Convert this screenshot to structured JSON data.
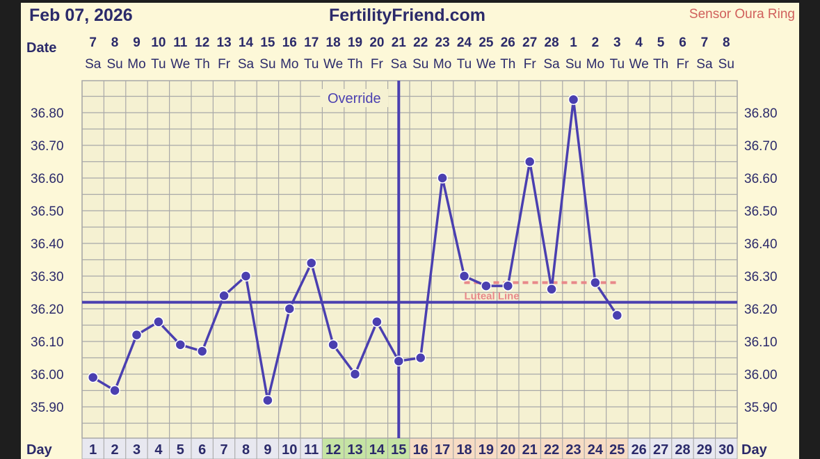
{
  "header": {
    "date": "Feb 07, 2026",
    "site": "FertilityFriend.com",
    "sensor": "Sensor Oura Ring"
  },
  "labels": {
    "date_row": "Date",
    "day_row": "Day",
    "override": "Override",
    "luteal": "Luteal Line"
  },
  "colors": {
    "line": "#4a3fb0",
    "grid": "#a8a8a8",
    "text": "#2b2a6a",
    "luteal": "#e8888a",
    "fertile_cell": "#c6e4a4",
    "luteal_cell": "#f7dcc4",
    "default_cell": "#e8e8f0",
    "background": "#fdf8d8"
  },
  "chart_data": {
    "type": "line",
    "xlabel": "Day",
    "dates": [
      "7",
      "8",
      "9",
      "10",
      "11",
      "12",
      "13",
      "14",
      "15",
      "16",
      "17",
      "18",
      "19",
      "20",
      "21",
      "22",
      "23",
      "24",
      "25",
      "26",
      "27",
      "28",
      "1",
      "2",
      "3",
      "4",
      "5",
      "6",
      "7",
      "8"
    ],
    "weekdays": [
      "Sa",
      "Su",
      "Mo",
      "Tu",
      "We",
      "Th",
      "Fr",
      "Sa",
      "Su",
      "Mo",
      "Tu",
      "We",
      "Th",
      "Fr",
      "Sa",
      "Su",
      "Mo",
      "Tu",
      "We",
      "Th",
      "Fr",
      "Sa",
      "Su",
      "Mo",
      "Tu",
      "We",
      "Th",
      "Fr",
      "Sa",
      "Su"
    ],
    "days": [
      1,
      2,
      3,
      4,
      5,
      6,
      7,
      8,
      9,
      10,
      11,
      12,
      13,
      14,
      15,
      16,
      17,
      18,
      19,
      20,
      21,
      22,
      23,
      24,
      25,
      26,
      27,
      28,
      29,
      30
    ],
    "temperatures": [
      35.99,
      35.95,
      36.12,
      36.16,
      36.09,
      36.07,
      36.24,
      36.3,
      35.92,
      36.2,
      36.34,
      36.09,
      36.0,
      36.16,
      36.04,
      36.05,
      36.6,
      36.3,
      36.27,
      36.27,
      36.65,
      36.26,
      36.84,
      36.28,
      36.18
    ],
    "yticks": [
      "35.90",
      "36.00",
      "36.10",
      "36.20",
      "36.30",
      "36.40",
      "36.50",
      "36.60",
      "36.70",
      "36.80"
    ],
    "ylim": [
      35.8,
      36.9
    ],
    "coverline": 36.22,
    "luteal_line": 36.28,
    "luteal_line_days": [
      18,
      25
    ],
    "ovulation_day": 15,
    "fertile_days": [
      12,
      13,
      14,
      15
    ],
    "luteal_days": [
      16,
      17,
      18,
      19,
      20,
      21,
      22,
      23,
      24,
      25
    ],
    "grid": true
  }
}
